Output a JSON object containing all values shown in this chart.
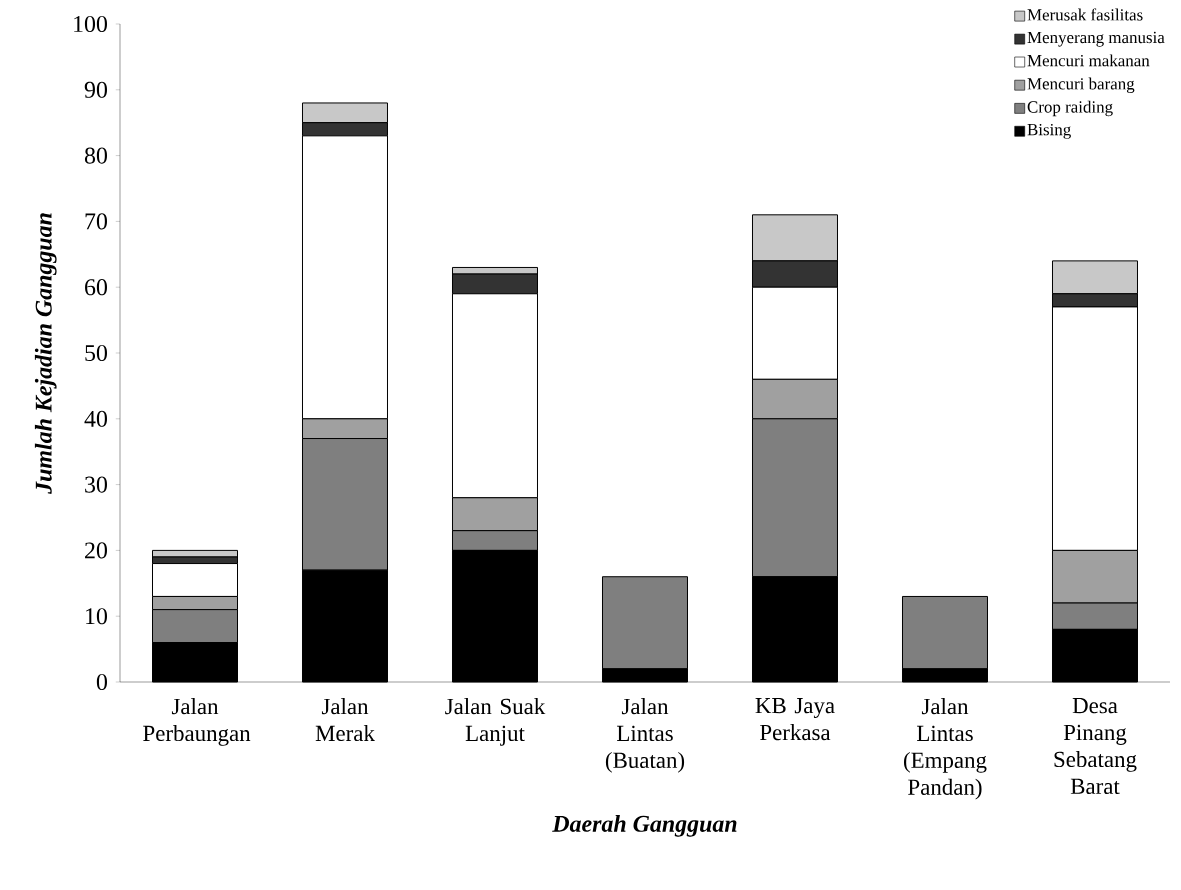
{
  "chart_data": {
    "type": "bar",
    "stacked": true,
    "xlabel": "Daerah Gangguan",
    "ylabel": "Jumlah Kejadian Gangguan",
    "categories": [
      "Jalan Perbaungan",
      "Jalan Merak",
      "Jalan Suak Lanjut",
      "Jalan Lintas (Buatan)",
      "KB Jaya Perkasa",
      "Jalan Lintas (Empang Pandan)",
      "Desa Pinang Sebatang Barat"
    ],
    "series": [
      {
        "name": "Bising",
        "color": "#000000",
        "values": [
          6,
          17,
          20,
          2,
          16,
          2,
          8
        ]
      },
      {
        "name": "Crop raiding",
        "color": "#7f7f7f",
        "values": [
          5,
          20,
          3,
          14,
          24,
          11,
          4
        ]
      },
      {
        "name": "Mencuri barang",
        "color": "#a0a0a0",
        "values": [
          2,
          3,
          5,
          0,
          6,
          0,
          8
        ]
      },
      {
        "name": "Mencuri makanan",
        "color": "#ffffff",
        "values": [
          5,
          43,
          31,
          0,
          14,
          0,
          37
        ]
      },
      {
        "name": "Menyerang manusia",
        "color": "#333333",
        "values": [
          1,
          2,
          3,
          0,
          4,
          0,
          2
        ]
      },
      {
        "name": "Merusak fasilitas",
        "color": "#c8c8c8",
        "values": [
          1,
          3,
          1,
          0,
          7,
          0,
          5
        ]
      }
    ],
    "ylim": [
      0,
      100
    ],
    "yticks": [
      0,
      10,
      20,
      30,
      40,
      50,
      60,
      70,
      80,
      90,
      100
    ],
    "grid": false,
    "legend": "top right"
  }
}
